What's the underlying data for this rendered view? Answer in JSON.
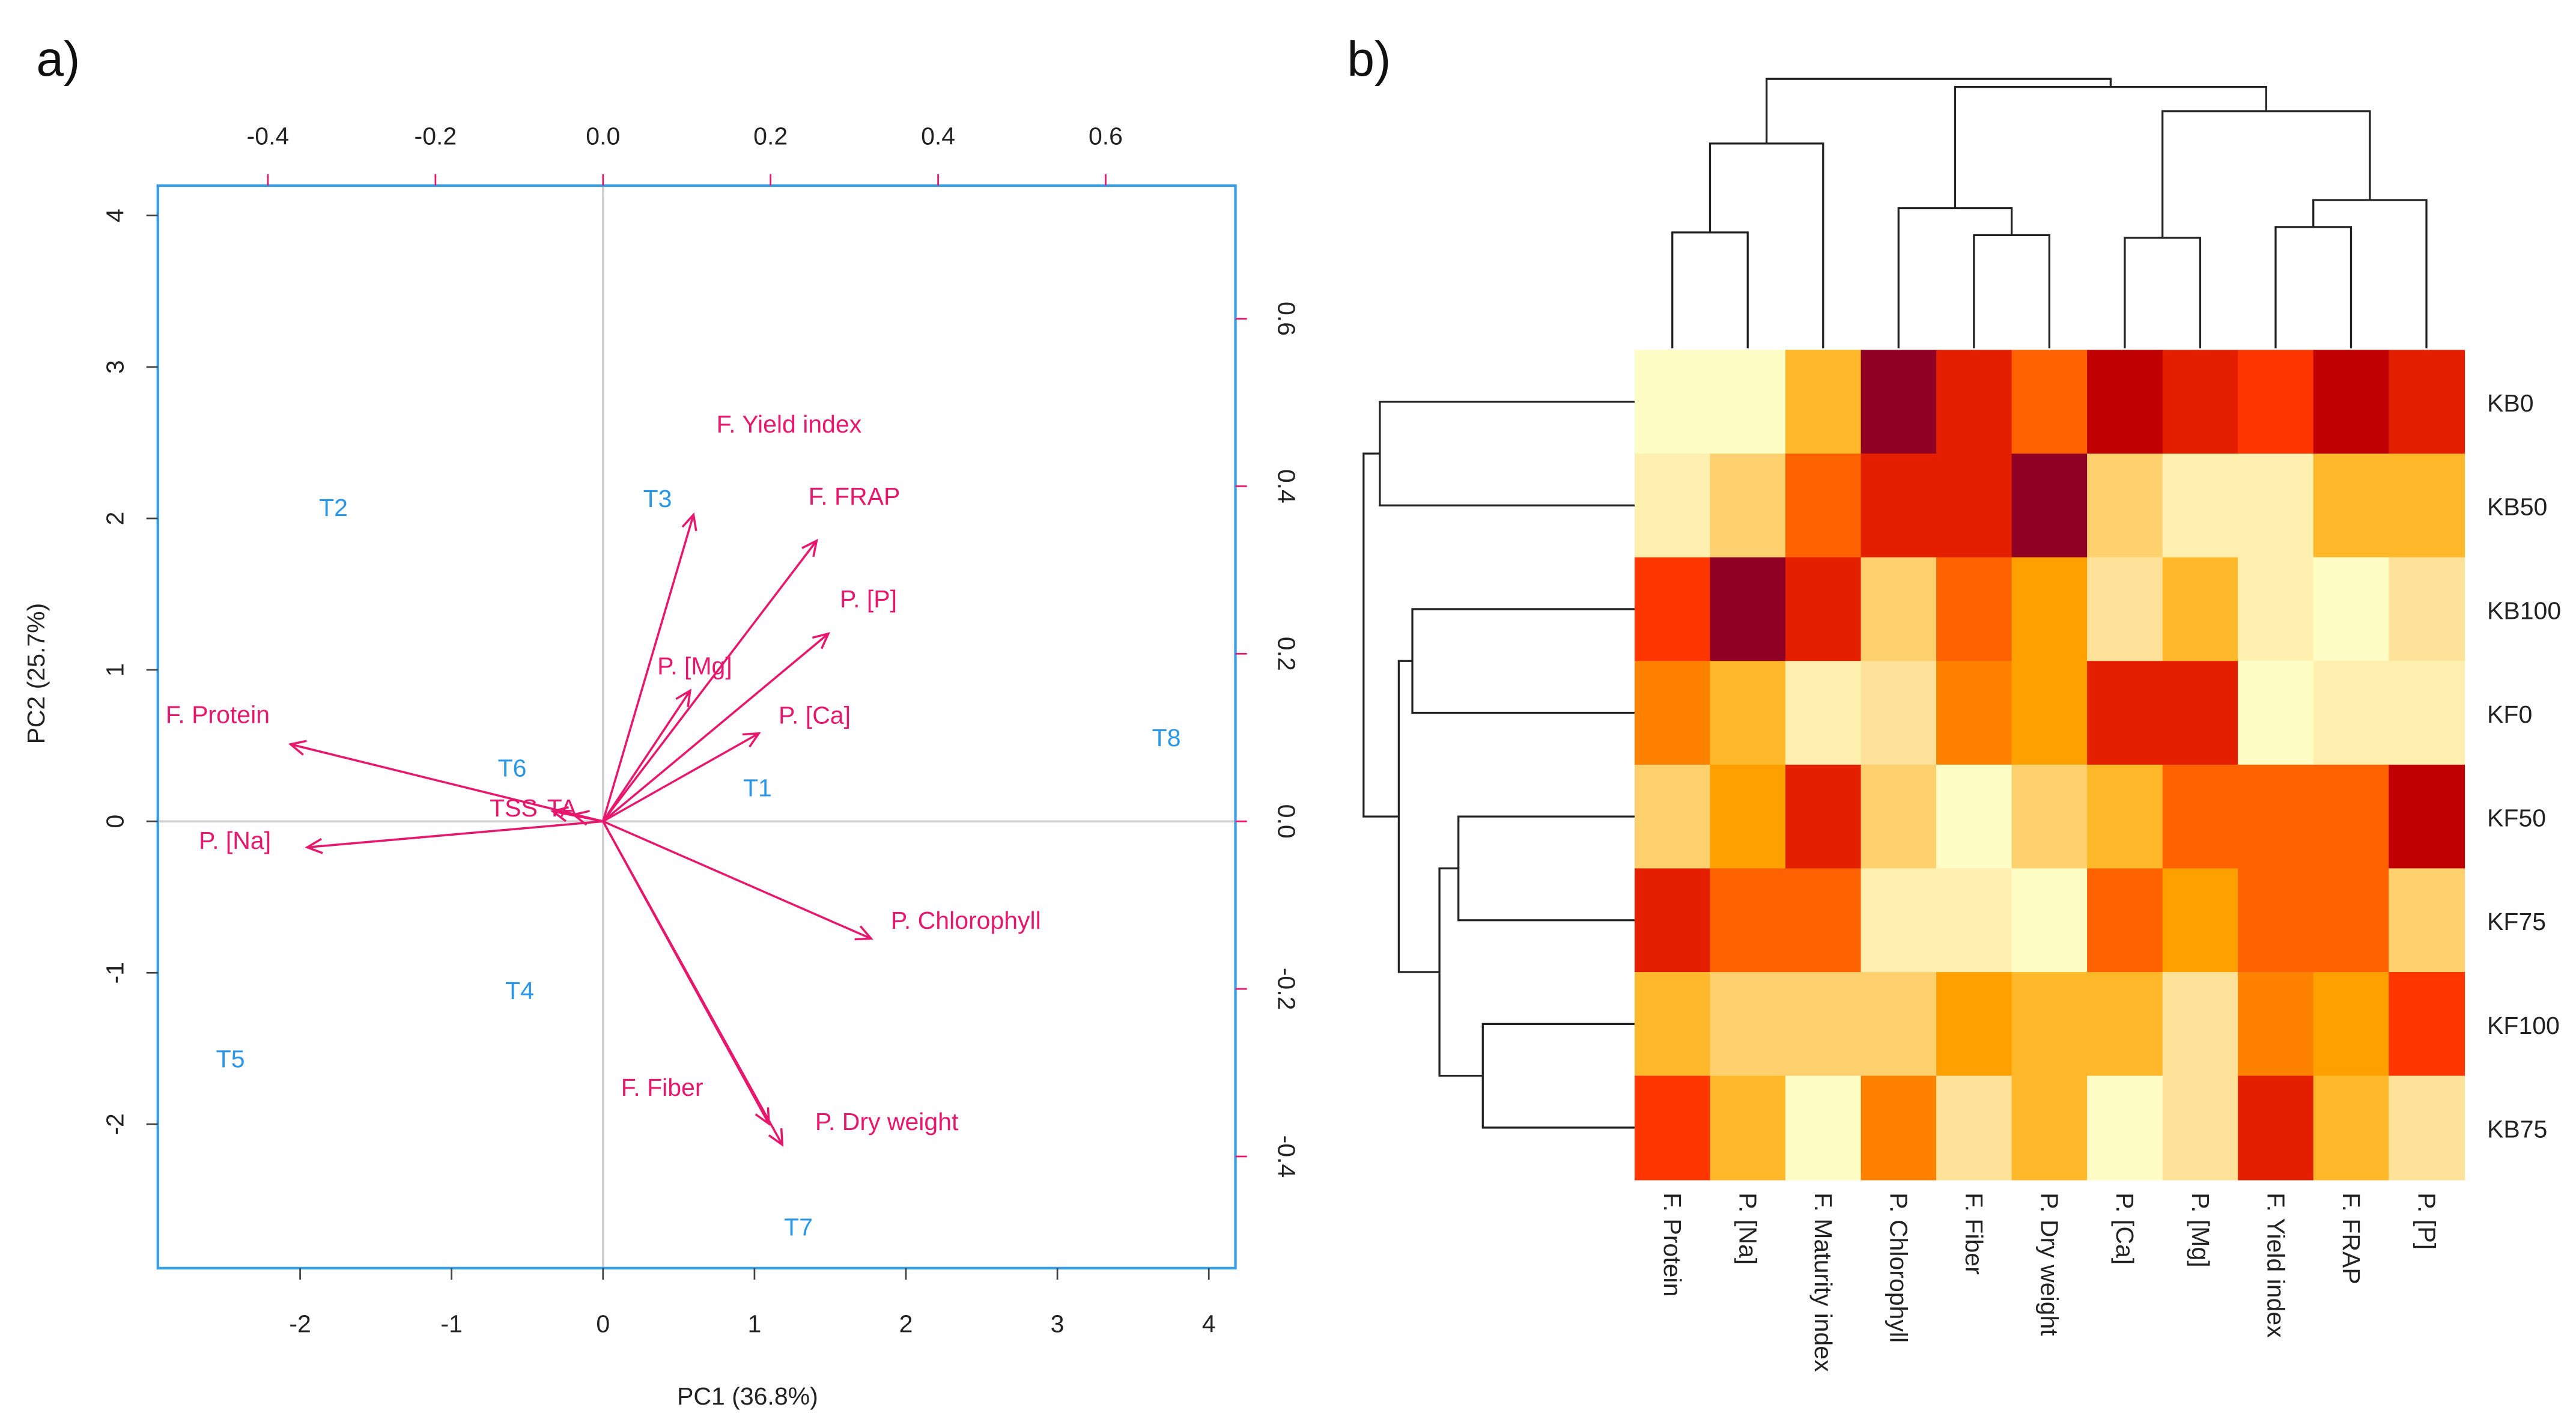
{
  "panel_labels": [
    "a)",
    "b)"
  ],
  "chart_data": [
    {
      "type": "scatter",
      "subtype": "pca-biplot",
      "xlabel": "PC1 (36.8%)",
      "ylabel": "PC2 (25.7%)",
      "xlim": [
        -2.95,
        4.2
      ],
      "ylim": [
        -2.95,
        4.2
      ],
      "x_ticks": [
        "-2",
        "-1",
        "0",
        "1",
        "2",
        "3",
        "4"
      ],
      "y_ticks": [
        "-2",
        "-1",
        "0",
        "1",
        "2",
        "3",
        "4"
      ],
      "top_ticks": [
        "-0.4",
        "-0.2",
        "0.0",
        "0.2",
        "0.4",
        "0.6"
      ],
      "right_ticks": [
        "-0.4",
        "-0.2",
        "0.0",
        "0.2",
        "0.4",
        "0.6"
      ],
      "scores": [
        {
          "label": "T1",
          "x": 1.02,
          "y": 0.22
        },
        {
          "label": "T2",
          "x": -1.78,
          "y": 2.07
        },
        {
          "label": "T3",
          "x": 0.36,
          "y": 2.13
        },
        {
          "label": "T4",
          "x": -0.55,
          "y": -1.12
        },
        {
          "label": "T5",
          "x": -2.46,
          "y": -1.57
        },
        {
          "label": "T6",
          "x": -0.6,
          "y": 0.35
        },
        {
          "label": "T7",
          "x": 1.29,
          "y": -2.68
        },
        {
          "label": "T8",
          "x": 3.72,
          "y": 0.55
        }
      ],
      "loadings": [
        {
          "label": "F. Yield index",
          "x": 0.108,
          "y": 0.366
        },
        {
          "label": "F. FRAP",
          "x": 0.255,
          "y": 0.335
        },
        {
          "label": "P. [P]",
          "x": 0.269,
          "y": 0.224
        },
        {
          "label": "P. [Mg]",
          "x": 0.104,
          "y": 0.156
        },
        {
          "label": "P. [Ca]",
          "x": 0.186,
          "y": 0.105
        },
        {
          "label": "F. Protein",
          "x": -0.373,
          "y": 0.092
        },
        {
          "label": "P. [Na]",
          "x": -0.353,
          "y": -0.031
        },
        {
          "label": "P. Chlorophyll",
          "x": 0.32,
          "y": -0.14
        },
        {
          "label": "F. Fiber",
          "x": 0.198,
          "y": -0.361
        },
        {
          "label": "P. Dry weight",
          "x": 0.214,
          "y": -0.386
        },
        {
          "label": "TSS",
          "x": -0.06,
          "y": 0.012
        },
        {
          "label": "TA",
          "x": -0.035,
          "y": 0.008
        }
      ],
      "colors": {
        "loadings": "#E8176E",
        "scores": "#2A96E6",
        "frame": "#3A9FE6"
      }
    },
    {
      "type": "heatmap",
      "columns": [
        "F. Protein",
        "P. [Na]",
        "F. Maturity index",
        "P. Chlorophyll",
        "F. Fiber",
        "P. Dry weight",
        "P. [Ca]",
        "P. [Mg]",
        "F. Yield index",
        "F. FRAP",
        "P. [P]"
      ],
      "rows": [
        "KB0",
        "KB50",
        "KB100",
        "KF0",
        "KF50",
        "KF75",
        "KF100",
        "KB75"
      ],
      "value_scale": "0 (lightest) to 11 (darkest)",
      "values": [
        [
          0,
          0,
          4,
          11,
          9,
          7,
          10,
          9,
          8,
          10,
          9
        ],
        [
          1,
          3,
          7,
          9,
          9,
          11,
          3,
          1,
          1,
          4,
          4
        ],
        [
          8,
          11,
          9,
          3,
          7,
          5,
          2,
          4,
          1,
          0,
          2
        ],
        [
          6,
          4,
          1,
          2,
          6,
          5,
          9,
          9,
          0,
          1,
          1
        ],
        [
          3,
          5,
          9,
          3,
          0,
          3,
          4,
          7,
          7,
          7,
          10
        ],
        [
          9,
          7,
          7,
          1,
          1,
          0,
          7,
          5,
          7,
          7,
          3
        ],
        [
          4,
          3,
          3,
          3,
          5,
          4,
          4,
          2,
          6,
          5,
          8
        ],
        [
          8,
          4,
          0,
          6,
          2,
          4,
          0,
          2,
          9,
          4,
          2
        ]
      ],
      "palette": [
        "#FFFDC6",
        "#FFF0B0",
        "#FFE29A",
        "#FED06E",
        "#FEB82A",
        "#FEA000",
        "#FE8200",
        "#FE6200",
        "#FF3600",
        "#E31F00",
        "#C00000",
        "#900025"
      ],
      "column_dendrogram": [
        {
          "a": 0,
          "b": 1,
          "h": 4.3
        },
        {
          "a": 4,
          "b": 5,
          "h": 4.2
        },
        {
          "a": 6,
          "b": 7,
          "h": 4.1
        },
        {
          "a": 8,
          "b": 9,
          "h": 4.5
        },
        {
          "a": "m4",
          "b": 10,
          "h": 5.5
        },
        {
          "a": "m2",
          "b": 3,
          "h": 5.2
        },
        {
          "a": "m1",
          "b": 2,
          "h": 7.6
        },
        {
          "a": "m3",
          "b": "m5",
          "h": 8.8
        },
        {
          "a": "m6",
          "b": "m8",
          "h": 9.7
        },
        {
          "a": "m7",
          "b": "m9",
          "h": 10.0
        }
      ],
      "row_dendrogram": [
        {
          "a": 0,
          "b": 1,
          "h": 9.4
        },
        {
          "a": 2,
          "b": 3,
          "h": 8.2
        },
        {
          "a": 4,
          "b": 5,
          "h": 6.5
        },
        {
          "a": 6,
          "b": 7,
          "h": 5.6
        },
        {
          "a": "m3",
          "b": "m4",
          "h": 7.2
        },
        {
          "a": "m2",
          "b": "m5",
          "h": 8.7
        },
        {
          "a": "m1",
          "b": "m6",
          "h": 10.0
        }
      ]
    }
  ]
}
